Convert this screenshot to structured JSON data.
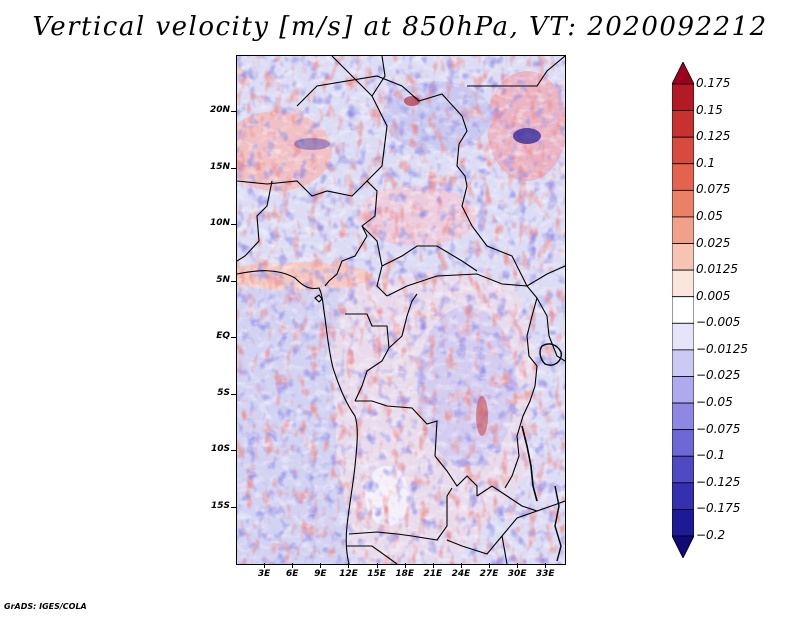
{
  "title": "Vertical velocity [m/s] at 850hPa, VT: 2020092212",
  "footer": "GrADS: IGES/COLA",
  "map": {
    "lat_labels": [
      "20N",
      "15N",
      "10N",
      "5N",
      "EQ",
      "5S",
      "10S",
      "15S"
    ],
    "lon_labels": [
      "3E",
      "6E",
      "9E",
      "12E",
      "15E",
      "18E",
      "21E",
      "24E",
      "27E",
      "30E",
      "33E"
    ],
    "lat_range": [
      -20,
      25
    ],
    "lon_range": [
      0,
      35
    ]
  },
  "colorbar": {
    "labels": [
      "0.175",
      "0.15",
      "0.125",
      "0.1",
      "0.075",
      "0.05",
      "0.025",
      "0.0125",
      "0.005",
      "−0.005",
      "−0.0125",
      "−0.025",
      "−0.05",
      "−0.075",
      "−0.1",
      "−0.125",
      "−0.175",
      "−0.2"
    ],
    "colors": [
      "#a0001e",
      "#b41a26",
      "#c8322e",
      "#d74a3e",
      "#e2644e",
      "#ea8066",
      "#f1a08a",
      "#f7c4b4",
      "#fbe6de",
      "#ffffff",
      "#e6e4fa",
      "#cbcaf4",
      "#adaaee",
      "#8d88e4",
      "#6d68d6",
      "#4f4ac4",
      "#3530b0",
      "#1e1a96",
      "#100a78"
    ]
  }
}
